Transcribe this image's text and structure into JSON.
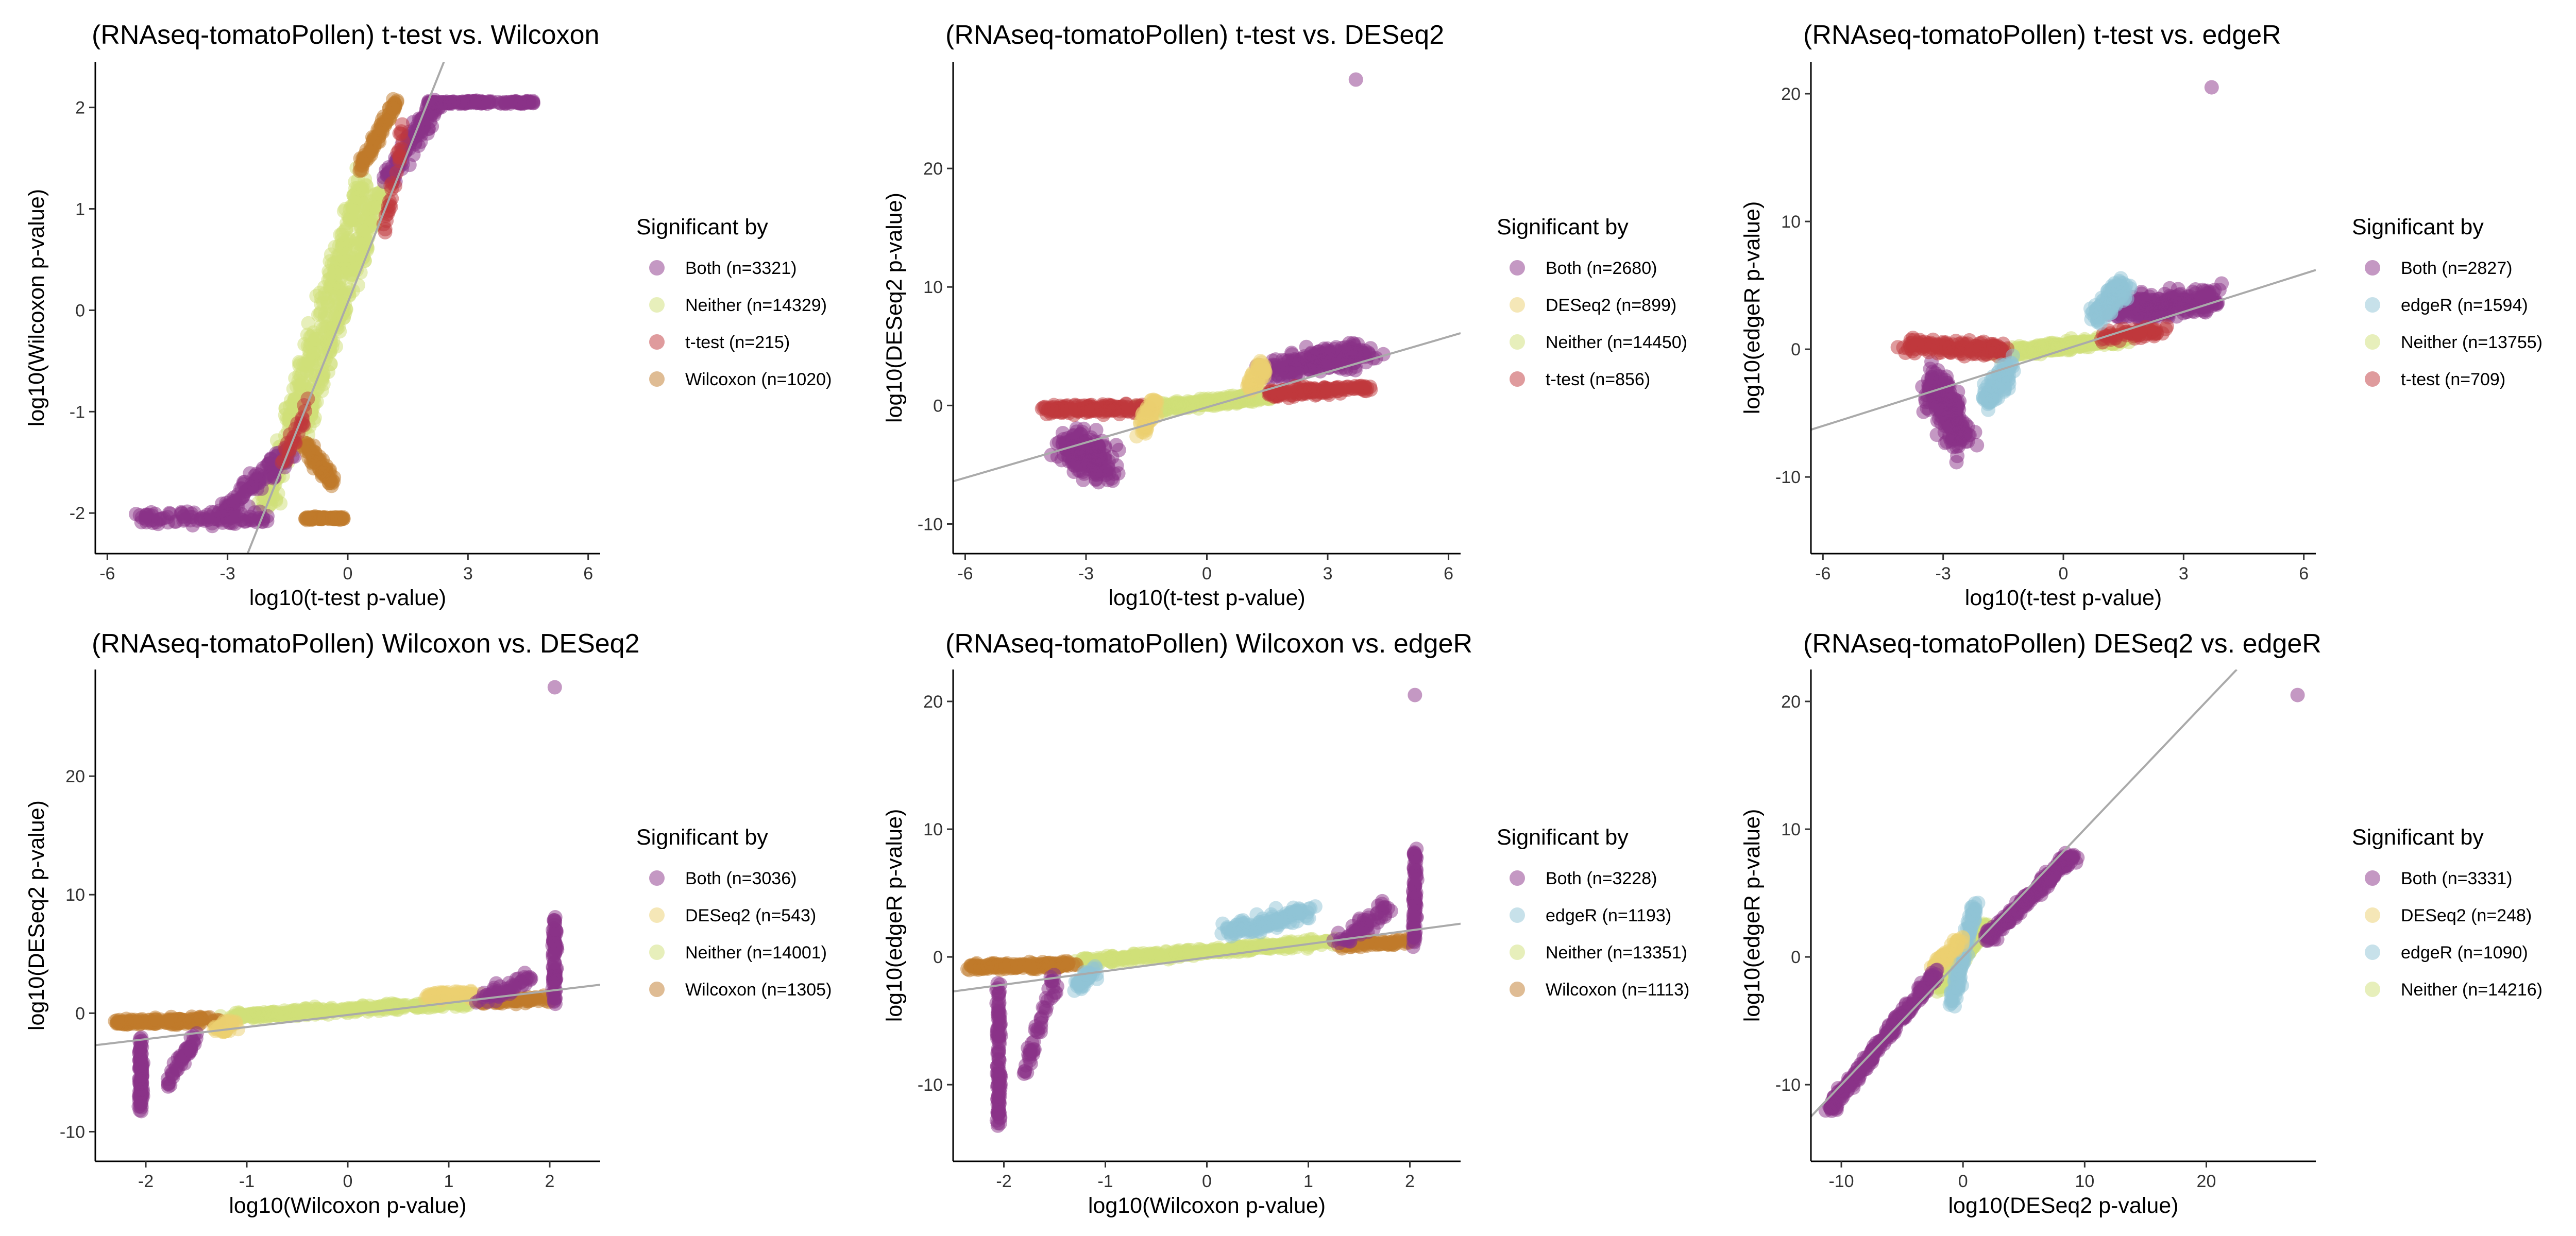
{
  "colors": {
    "both": "#8a3287",
    "neither": "#cfdf78",
    "ttest": "#c0373c",
    "wilcoxon": "#c07a2a",
    "deseq2": "#ecd070",
    "edger": "#8fc3d6",
    "reference_line": "#aaaaaa"
  },
  "chart_data": [
    {
      "type": "scatter",
      "title": "(RNAseq-tomatoPollen) t-test vs. Wilcoxon",
      "xlabel": "log10(t-test p-value)",
      "ylabel": "log10(Wilcoxon p-value)",
      "xlim": [
        -6.3,
        6.3
      ],
      "ylim": [
        -2.4,
        2.45
      ],
      "xticks": [
        -6,
        -3,
        0,
        3,
        6
      ],
      "yticks": [
        -2,
        -1,
        0,
        1,
        2
      ],
      "legend_title": "Significant by",
      "legend": [
        {
          "label": "Both (n=3321)",
          "color_key": "both"
        },
        {
          "label": "Neither (n=14329)",
          "color_key": "neither"
        },
        {
          "label": "t-test (n=215)",
          "color_key": "ttest"
        },
        {
          "label": "Wilcoxon (n=1020)",
          "color_key": "wilcoxon"
        }
      ],
      "reference_line": [
        [
          -2.5,
          -2.4
        ],
        [
          2.4,
          2.45
        ]
      ]
    },
    {
      "type": "scatter",
      "title": "(RNAseq-tomatoPollen) t-test vs. DESeq2",
      "xlabel": "log10(t-test p-value)",
      "ylabel": "log10(DESeq2 p-value)",
      "xlim": [
        -6.3,
        6.3
      ],
      "ylim": [
        -12.5,
        29
      ],
      "xticks": [
        -6,
        -3,
        0,
        3,
        6
      ],
      "yticks": [
        -10,
        0,
        10,
        20
      ],
      "legend_title": "Significant by",
      "legend": [
        {
          "label": "Both (n=2680)",
          "color_key": "both"
        },
        {
          "label": "DESeq2 (n=899)",
          "color_key": "deseq2"
        },
        {
          "label": "Neither (n=14450)",
          "color_key": "neither"
        },
        {
          "label": "t-test (n=856)",
          "color_key": "ttest"
        }
      ],
      "reference_line": [
        [
          -6.3,
          -6.4
        ],
        [
          6.3,
          6.1
        ]
      ]
    },
    {
      "type": "scatter",
      "title": "(RNAseq-tomatoPollen) t-test vs. edgeR",
      "xlabel": "log10(t-test p-value)",
      "ylabel": "log10(edgeR p-value)",
      "xlim": [
        -6.3,
        6.3
      ],
      "ylim": [
        -16,
        22.5
      ],
      "xticks": [
        -6,
        -3,
        0,
        3,
        6
      ],
      "yticks": [
        -10,
        0,
        10,
        20
      ],
      "legend_title": "Significant by",
      "legend": [
        {
          "label": "Both (n=2827)",
          "color_key": "both"
        },
        {
          "label": "edgeR (n=1594)",
          "color_key": "edger"
        },
        {
          "label": "Neither (n=13755)",
          "color_key": "neither"
        },
        {
          "label": "t-test (n=709)",
          "color_key": "ttest"
        }
      ],
      "reference_line": [
        [
          -6.3,
          -6.3
        ],
        [
          6.3,
          6.2
        ]
      ]
    },
    {
      "type": "scatter",
      "title": "(RNAseq-tomatoPollen) Wilcoxon vs. DESeq2",
      "xlabel": "log10(Wilcoxon p-value)",
      "ylabel": "log10(DESeq2 p-value)",
      "xlim": [
        -2.5,
        2.5
      ],
      "ylim": [
        -12.5,
        29
      ],
      "xticks": [
        -2,
        -1,
        0,
        1,
        2
      ],
      "yticks": [
        -10,
        0,
        10,
        20
      ],
      "legend_title": "Significant by",
      "legend": [
        {
          "label": "Both (n=3036)",
          "color_key": "both"
        },
        {
          "label": "DESeq2 (n=543)",
          "color_key": "deseq2"
        },
        {
          "label": "Neither (n=14001)",
          "color_key": "neither"
        },
        {
          "label": "Wilcoxon (n=1305)",
          "color_key": "wilcoxon"
        }
      ],
      "reference_line": [
        [
          -2.5,
          -2.7
        ],
        [
          2.5,
          2.4
        ]
      ]
    },
    {
      "type": "scatter",
      "title": "(RNAseq-tomatoPollen) Wilcoxon vs. edgeR",
      "xlabel": "log10(Wilcoxon p-value)",
      "ylabel": "log10(edgeR p-value)",
      "xlim": [
        -2.5,
        2.5
      ],
      "ylim": [
        -16,
        22.5
      ],
      "xticks": [
        -2,
        -1,
        0,
        1,
        2
      ],
      "yticks": [
        -10,
        0,
        10,
        20
      ],
      "legend_title": "Significant by",
      "legend": [
        {
          "label": "Both (n=3228)",
          "color_key": "both"
        },
        {
          "label": "edgeR (n=1193)",
          "color_key": "edger"
        },
        {
          "label": "Neither (n=13351)",
          "color_key": "neither"
        },
        {
          "label": "Wilcoxon (n=1113)",
          "color_key": "wilcoxon"
        }
      ],
      "reference_line": [
        [
          -2.5,
          -2.7
        ],
        [
          2.5,
          2.6
        ]
      ]
    },
    {
      "type": "scatter",
      "title": "(RNAseq-tomatoPollen) DESeq2 vs. edgeR",
      "xlabel": "log10(DESeq2 p-value)",
      "ylabel": "log10(edgeR p-value)",
      "xlim": [
        -12.5,
        29
      ],
      "ylim": [
        -16,
        22.5
      ],
      "xticks": [
        -10,
        0,
        10,
        20
      ],
      "yticks": [
        -10,
        0,
        10,
        20
      ],
      "legend_title": "Significant by",
      "legend": [
        {
          "label": "Both (n=3331)",
          "color_key": "both"
        },
        {
          "label": "DESeq2 (n=248)",
          "color_key": "deseq2"
        },
        {
          "label": "edgeR (n=1090)",
          "color_key": "edger"
        },
        {
          "label": "Neither (n=14216)",
          "color_key": "neither"
        }
      ],
      "reference_line": [
        [
          -12.5,
          -12.5
        ],
        [
          22.5,
          22.5
        ]
      ]
    }
  ]
}
